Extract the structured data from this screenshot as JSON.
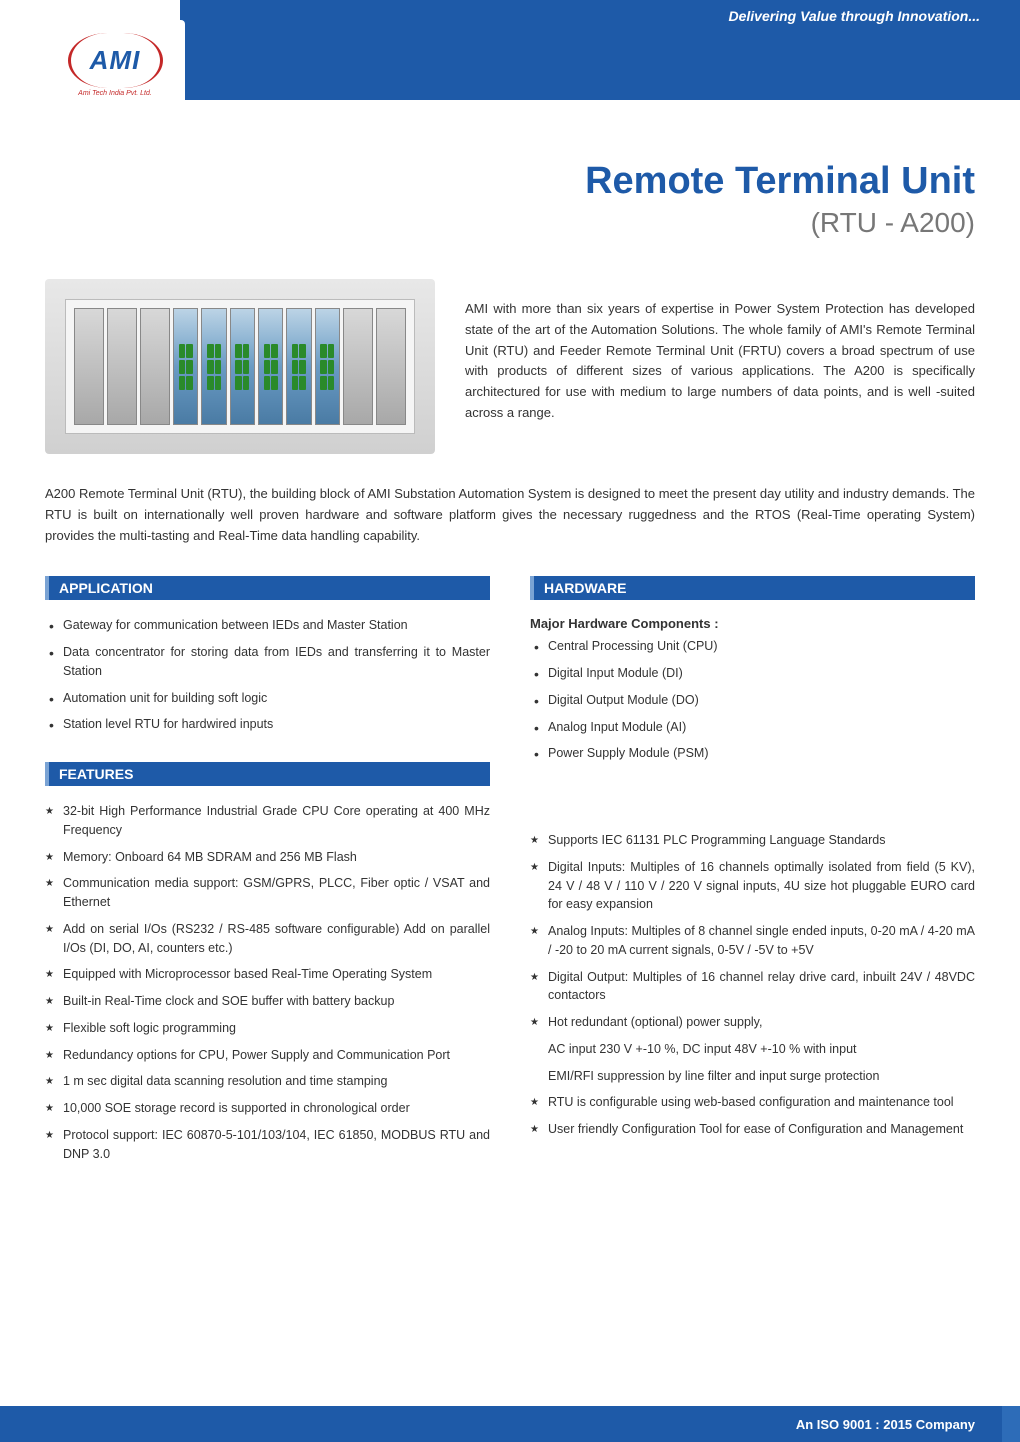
{
  "header": {
    "tagline": "Delivering Value through Innovation...",
    "logo_text": "AMI",
    "logo_sub": "Ami Tech India Pvt. Ltd."
  },
  "title": {
    "main": "Remote Terminal Unit",
    "sub": "(RTU - A200)"
  },
  "intro_side": "AMI with more than six years of expertise in Power System Protection has developed state of the art of the Automation Solutions. The whole family of AMI's Remote Terminal Unit (RTU) and Feeder Remote Terminal Unit (FRTU) covers a broad spectrum of use with products of different sizes of various applications. The A200 is specifically architectured for use with medium to large numbers of data points, and is well -suited across a range.",
  "intro_full": "A200 Remote Terminal Unit (RTU), the building block of AMI Substation Automation System is designed to meet the present day utility and industry demands. The RTU is built on internationally well proven hardware and software platform gives the necessary ruggedness and the RTOS (Real-Time operating System) provides the multi-tasting and Real-Time data handling capability.",
  "sections": {
    "application": {
      "heading": "APPLICATION",
      "items": [
        "Gateway for communication between IEDs and Master Station",
        "Data concentrator for storing data from IEDs and transferring it to Master Station",
        "Automation unit for building soft logic",
        "Station level RTU for hardwired inputs"
      ]
    },
    "hardware": {
      "heading": "HARDWARE",
      "sub_heading": "Major Hardware Components :",
      "items": [
        "Central Processing Unit (CPU)",
        "Digital Input Module (DI)",
        "Digital Output Module (DO)",
        "Analog Input Module (AI)",
        "Power Supply Module (PSM)"
      ]
    },
    "features": {
      "heading": "FEATURES",
      "left": [
        "32-bit High Performance Industrial Grade CPU Core operating at 400 MHz Frequency",
        "Memory: Onboard 64 MB SDRAM and 256 MB Flash",
        "Communication media support: GSM/GPRS, PLCC, Fiber optic / VSAT and Ethernet",
        "Add on serial I/Os (RS232 / RS-485 software configurable) Add on parallel I/Os (DI, DO, AI, counters etc.)",
        "Equipped with Microprocessor based Real-Time Operating System",
        "Built-in Real-Time clock and SOE buffer with battery backup",
        "Flexible soft logic programming",
        "Redundancy options for CPU, Power Supply and Communication Port",
        "1 m sec digital data scanning resolution and time stamping",
        "10,000 SOE storage record is supported in chronological order",
        "Protocol support: IEC 60870-5-101/103/104, IEC 61850, MODBUS RTU and DNP 3.0"
      ],
      "right": [
        "Supports IEC 61131 PLC Programming Language Standards",
        "Digital Inputs: Multiples of 16 channels optimally isolated from field (5 KV), 24 V / 48 V / 110 V / 220 V signal inputs, 4U size hot pluggable EURO card for easy expansion",
        "Analog Inputs: Multiples of 8 channel single ended inputs, 0-20 mA / 4-20 mA / -20 to 20 mA current signals, 0-5V / -5V to +5V",
        "Digital Output: Multiples of 16 channel relay drive card, inbuilt 24V / 48VDC contactors",
        "Hot redundant (optional) power supply,",
        "RTU is configurable using web-based configuration and maintenance tool",
        "User friendly Configuration Tool for ease of Configuration and Management"
      ],
      "right_sub1": "AC input 230 V +-10 %, DC input 48V +-10 % with input",
      "right_sub2": "EMI/RFI suppression by line filter and input surge protection"
    }
  },
  "footer": {
    "text": "An ISO 9001 : 2015 Company"
  },
  "colors": {
    "primary_blue": "#1e5aa8",
    "accent_blue": "#2d6cb8",
    "logo_red": "#c42828",
    "text": "#333333",
    "background": "#ffffff"
  }
}
